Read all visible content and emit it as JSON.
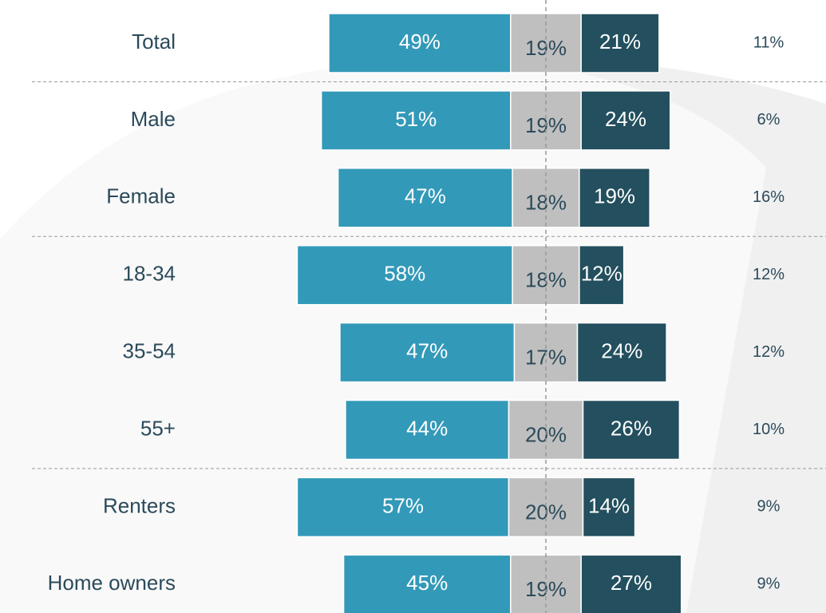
{
  "chart_data": {
    "type": "diverging_bar",
    "categories": [
      "Total",
      "Male",
      "Female",
      "18-34",
      "35-54",
      "55+",
      "Renters",
      "Home owners"
    ],
    "series": [
      {
        "color": "#3399b8",
        "values": [
          49,
          51,
          47,
          58,
          47,
          44,
          57,
          45
        ],
        "value_labels": [
          "49%",
          "51%",
          "47%",
          "58%",
          "47%",
          "44%",
          "57%",
          "45%"
        ]
      },
      {
        "color": "#bfbfbf",
        "values": [
          19,
          19,
          18,
          18,
          17,
          20,
          20,
          19
        ],
        "value_labels": [
          "19%",
          "19%",
          "18%",
          "18%",
          "17%",
          "20%",
          "20%",
          "19%"
        ]
      },
      {
        "color": "#234f5e",
        "values": [
          21,
          24,
          19,
          12,
          24,
          26,
          14,
          27
        ],
        "value_labels": [
          "21%",
          "24%",
          "19%",
          "12%",
          "24%",
          "26%",
          "14%",
          "27%"
        ]
      },
      {
        "color": "#2b4a5a",
        "values": [
          11,
          6,
          16,
          12,
          12,
          10,
          9,
          9
        ],
        "value_labels": [
          "11%",
          "6%",
          "16%",
          "12%",
          "12%",
          "10%",
          "9%",
          "9%"
        ]
      }
    ]
  }
}
